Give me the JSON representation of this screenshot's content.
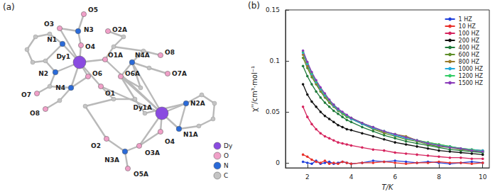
{
  "chart_data": {
    "type": "line",
    "annotations": [
      "(b)"
    ],
    "x_label": "T/K",
    "y_label": "χ''/cm³·mol⁻¹",
    "x": [
      1.8,
      2,
      2.2,
      2.4,
      2.6,
      2.8,
      3,
      3.2,
      3.4,
      3.6,
      3.8,
      4,
      4.5,
      5,
      5.5,
      6,
      6.5,
      7,
      7.5,
      8,
      8.5,
      9,
      9.5,
      10
    ],
    "series": [
      {
        "name": "1 HZ",
        "color": "#1f3fdc",
        "values": [
          0.001,
          0,
          -0.001,
          0.002,
          -0.001,
          0,
          0.001,
          -0.001,
          0,
          0.001,
          0,
          -0.001,
          0,
          0.002,
          0.001,
          0.002,
          0.001,
          0,
          0.001,
          0,
          -0.001,
          0,
          0.001,
          0
        ]
      },
      {
        "name": "10 HZ",
        "color": "#e8302a",
        "values": [
          0.008,
          0.006,
          0.003,
          0.001,
          0,
          0.002,
          -0.001,
          0,
          -0.001,
          0.001,
          0,
          -0.001,
          0,
          0,
          0.001,
          0,
          -0.001,
          0,
          0,
          0.001,
          0,
          0,
          -0.001,
          0
        ]
      },
      {
        "name": "100 HZ",
        "color": "#d6245e",
        "values": [
          0.055,
          0.045,
          0.038,
          0.033,
          0.029,
          0.026,
          0.024,
          0.022,
          0.02,
          0.019,
          0.018,
          0.017,
          0.015,
          0.013,
          0.012,
          0.01,
          0.009,
          0.008,
          0.007,
          0.006,
          0.005,
          0.005,
          0.004,
          0.004
        ]
      },
      {
        "name": "200 HZ",
        "color": "#111111",
        "values": [
          0.077,
          0.067,
          0.06,
          0.055,
          0.05,
          0.046,
          0.043,
          0.04,
          0.037,
          0.035,
          0.033,
          0.032,
          0.029,
          0.026,
          0.023,
          0.02,
          0.018,
          0.016,
          0.014,
          0.012,
          0.011,
          0.01,
          0.009,
          0.008
        ]
      },
      {
        "name": "400 HZ",
        "color": "#1e7a3a",
        "values": [
          0.095,
          0.085,
          0.077,
          0.07,
          0.064,
          0.059,
          0.055,
          0.051,
          0.048,
          0.045,
          0.042,
          0.04,
          0.035,
          0.031,
          0.027,
          0.024,
          0.021,
          0.019,
          0.017,
          0.015,
          0.013,
          0.012,
          0.011,
          0.01
        ]
      },
      {
        "name": "600 HZ",
        "color": "#5f8f2a",
        "values": [
          0.103,
          0.093,
          0.084,
          0.077,
          0.07,
          0.064,
          0.059,
          0.055,
          0.051,
          0.048,
          0.045,
          0.043,
          0.038,
          0.033,
          0.029,
          0.026,
          0.023,
          0.021,
          0.018,
          0.016,
          0.015,
          0.013,
          0.012,
          0.011
        ]
      },
      {
        "name": "800 HZ",
        "color": "#9a7a2a",
        "values": [
          0.106,
          0.095,
          0.086,
          0.078,
          0.071,
          0.065,
          0.06,
          0.056,
          0.052,
          0.049,
          0.046,
          0.044,
          0.039,
          0.034,
          0.03,
          0.028,
          0.026,
          0.022,
          0.02,
          0.018,
          0.016,
          0.014,
          0.013,
          0.012
        ]
      },
      {
        "name": "1000 HZ",
        "color": "#22aadd",
        "values": [
          0.108,
          0.097,
          0.087,
          0.079,
          0.072,
          0.066,
          0.061,
          0.056,
          0.052,
          0.049,
          0.046,
          0.043,
          0.038,
          0.034,
          0.031,
          0.027,
          0.024,
          0.022,
          0.019,
          0.017,
          0.016,
          0.014,
          0.013,
          0.012
        ]
      },
      {
        "name": "1200 HZ",
        "color": "#33cc66",
        "values": [
          0.109,
          0.098,
          0.088,
          0.08,
          0.073,
          0.067,
          0.061,
          0.057,
          0.053,
          0.049,
          0.046,
          0.044,
          0.039,
          0.035,
          0.031,
          0.028,
          0.025,
          0.022,
          0.02,
          0.018,
          0.016,
          0.014,
          0.013,
          0.011
        ]
      },
      {
        "name": "1500 HZ",
        "color": "#8a3ab9",
        "values": [
          0.11,
          0.099,
          0.089,
          0.081,
          0.074,
          0.068,
          0.062,
          0.057,
          0.053,
          0.05,
          0.047,
          0.044,
          0.039,
          0.035,
          0.031,
          0.028,
          0.025,
          0.022,
          0.019,
          0.017,
          0.015,
          0.014,
          0.012,
          0.011
        ]
      }
    ],
    "xlim": [
      1,
      10.3
    ],
    "xticks": [
      2,
      4,
      6,
      8,
      10
    ],
    "ylim": [
      -0.005,
      0.15
    ],
    "yticks": [
      0,
      0.05,
      0.1,
      0.15
    ],
    "marker": "circle",
    "line_style": "solid",
    "legend": "upper right",
    "grid": false
  },
  "diagram": {
    "panel_label": "(a)",
    "atoms": [
      {
        "label": "Dy1",
        "element": "Dy"
      },
      {
        "label": "N1",
        "element": "N"
      },
      {
        "label": "N2",
        "element": "N"
      },
      {
        "label": "N3",
        "element": "N"
      },
      {
        "label": "O5",
        "element": "O"
      },
      {
        "label": "O3",
        "element": "O"
      },
      {
        "label": "O2A",
        "element": "O"
      },
      {
        "label": "O4",
        "element": "O"
      },
      {
        "label": "O1A",
        "element": "O"
      },
      {
        "label": "N4A",
        "element": "N"
      },
      {
        "label": "O8",
        "element": "O"
      },
      {
        "label": "O7A",
        "element": "O"
      },
      {
        "label": "O6",
        "element": "O"
      },
      {
        "label": "O6A",
        "element": "O"
      },
      {
        "label": "O1",
        "element": "O"
      },
      {
        "label": "O7",
        "element": "O"
      },
      {
        "label": "N4",
        "element": "N"
      },
      {
        "label": "O8",
        "element": "O"
      },
      {
        "label": "Dy1A",
        "element": "Dy"
      },
      {
        "label": "N2A",
        "element": "N"
      },
      {
        "label": "N1A",
        "element": "N"
      },
      {
        "label": "O4",
        "element": "O"
      },
      {
        "label": "O3A",
        "element": "O"
      },
      {
        "label": "O2",
        "element": "O"
      },
      {
        "label": "N3A",
        "element": "N"
      },
      {
        "label": "O5A",
        "element": "O"
      }
    ],
    "legend": [
      "Dy",
      "O",
      "N",
      "C"
    ]
  }
}
